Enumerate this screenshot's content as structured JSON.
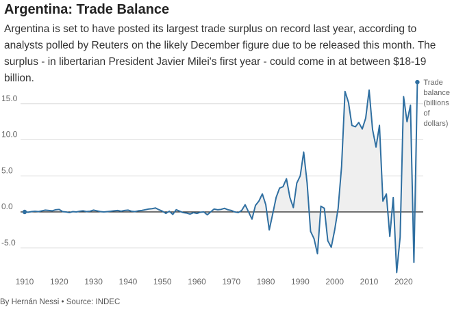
{
  "header": {
    "title": "Argentina: Trade Balance",
    "subtitle": "Argentina is set to have posted its largest trade surplus on record last year, according to analysts polled by Reuters on the likely December figure due to be released this month. The surplus - in libertarian President Javier Milei's first year - could come in at between $18-19 billion."
  },
  "footer": {
    "byline": "By Hernán Nessi",
    "separator": "•",
    "source": "Source: INDEC"
  },
  "colors": {
    "line": "#2f6fa1",
    "fill": "#efefef",
    "grid": "#dcdcdc",
    "zero": "#222222",
    "tick_text": "#666666"
  },
  "chart_data": {
    "type": "area",
    "title": "Argentina: Trade Balance",
    "xlabel": "",
    "ylabel": "Trade balance (billions of dollars)",
    "annotation": [
      "Trade",
      "balance",
      "(billions",
      "of",
      "dollars)"
    ],
    "xlim": [
      1910,
      2024
    ],
    "ylim": [
      -6.0,
      18.0
    ],
    "xticks": [
      1910,
      1920,
      1930,
      1940,
      1950,
      1960,
      1970,
      1980,
      1990,
      2000,
      2010,
      2020
    ],
    "yticks": [
      -5.0,
      0.0,
      5.0,
      10.0,
      15.0
    ],
    "ytick_labels": [
      "-5.0",
      "0.0",
      "5.0",
      "10.0",
      "15.0"
    ],
    "grid": true,
    "series": [
      {
        "name": "Trade balance",
        "x": [
          1910,
          1911,
          1912,
          1913,
          1914,
          1915,
          1916,
          1917,
          1918,
          1919,
          1920,
          1921,
          1922,
          1923,
          1924,
          1925,
          1926,
          1927,
          1928,
          1929,
          1930,
          1931,
          1932,
          1933,
          1934,
          1935,
          1936,
          1937,
          1938,
          1939,
          1940,
          1941,
          1942,
          1943,
          1944,
          1945,
          1946,
          1947,
          1948,
          1949,
          1950,
          1951,
          1952,
          1953,
          1954,
          1955,
          1956,
          1957,
          1958,
          1959,
          1960,
          1961,
          1962,
          1963,
          1964,
          1965,
          1966,
          1967,
          1968,
          1969,
          1970,
          1971,
          1972,
          1973,
          1974,
          1975,
          1976,
          1977,
          1978,
          1979,
          1980,
          1981,
          1982,
          1983,
          1984,
          1985,
          1986,
          1987,
          1988,
          1989,
          1990,
          1991,
          1992,
          1993,
          1994,
          1995,
          1996,
          1997,
          1998,
          1999,
          2000,
          2001,
          2002,
          2003,
          2004,
          2005,
          2006,
          2007,
          2008,
          2009,
          2010,
          2011,
          2012,
          2013,
          2014,
          2015,
          2016,
          2017,
          2018,
          2019,
          2020,
          2021,
          2022,
          2023,
          2024
        ],
        "values": [
          0.0,
          -0.05,
          0.05,
          0.1,
          0.05,
          0.15,
          0.25,
          0.2,
          0.15,
          0.3,
          0.35,
          0.05,
          0.0,
          -0.1,
          0.05,
          0.0,
          0.1,
          0.15,
          0.05,
          0.1,
          0.25,
          0.15,
          0.05,
          0.0,
          0.05,
          0.1,
          0.15,
          0.2,
          0.1,
          0.2,
          0.25,
          0.1,
          0.05,
          0.15,
          0.2,
          0.3,
          0.4,
          0.45,
          0.55,
          0.3,
          0.1,
          -0.2,
          0.1,
          -0.35,
          0.3,
          0.1,
          -0.1,
          -0.15,
          -0.3,
          -0.1,
          -0.2,
          -0.05,
          0.0,
          -0.4,
          0.0,
          0.4,
          0.3,
          0.35,
          0.5,
          0.3,
          0.2,
          0.0,
          -0.1,
          0.2,
          1.0,
          0.0,
          -1.0,
          0.9,
          1.5,
          2.5,
          1.0,
          -2.5,
          -0.3,
          2.0,
          3.3,
          3.5,
          4.6,
          2.0,
          0.6,
          4.0,
          5.0,
          8.3,
          4.0,
          -2.7,
          -3.7,
          -5.8,
          0.8,
          0.5,
          -4.0,
          -4.9,
          -2.5,
          0.5,
          6.3,
          16.7,
          15.2,
          12.0,
          11.8,
          12.4,
          11.5,
          13.0,
          16.9,
          11.4,
          9.0,
          12.0,
          1.5,
          2.5,
          -3.4,
          2.0,
          -8.4,
          -3.5,
          16.0,
          12.5,
          14.8,
          -7.0,
          18.0
        ]
      }
    ]
  }
}
